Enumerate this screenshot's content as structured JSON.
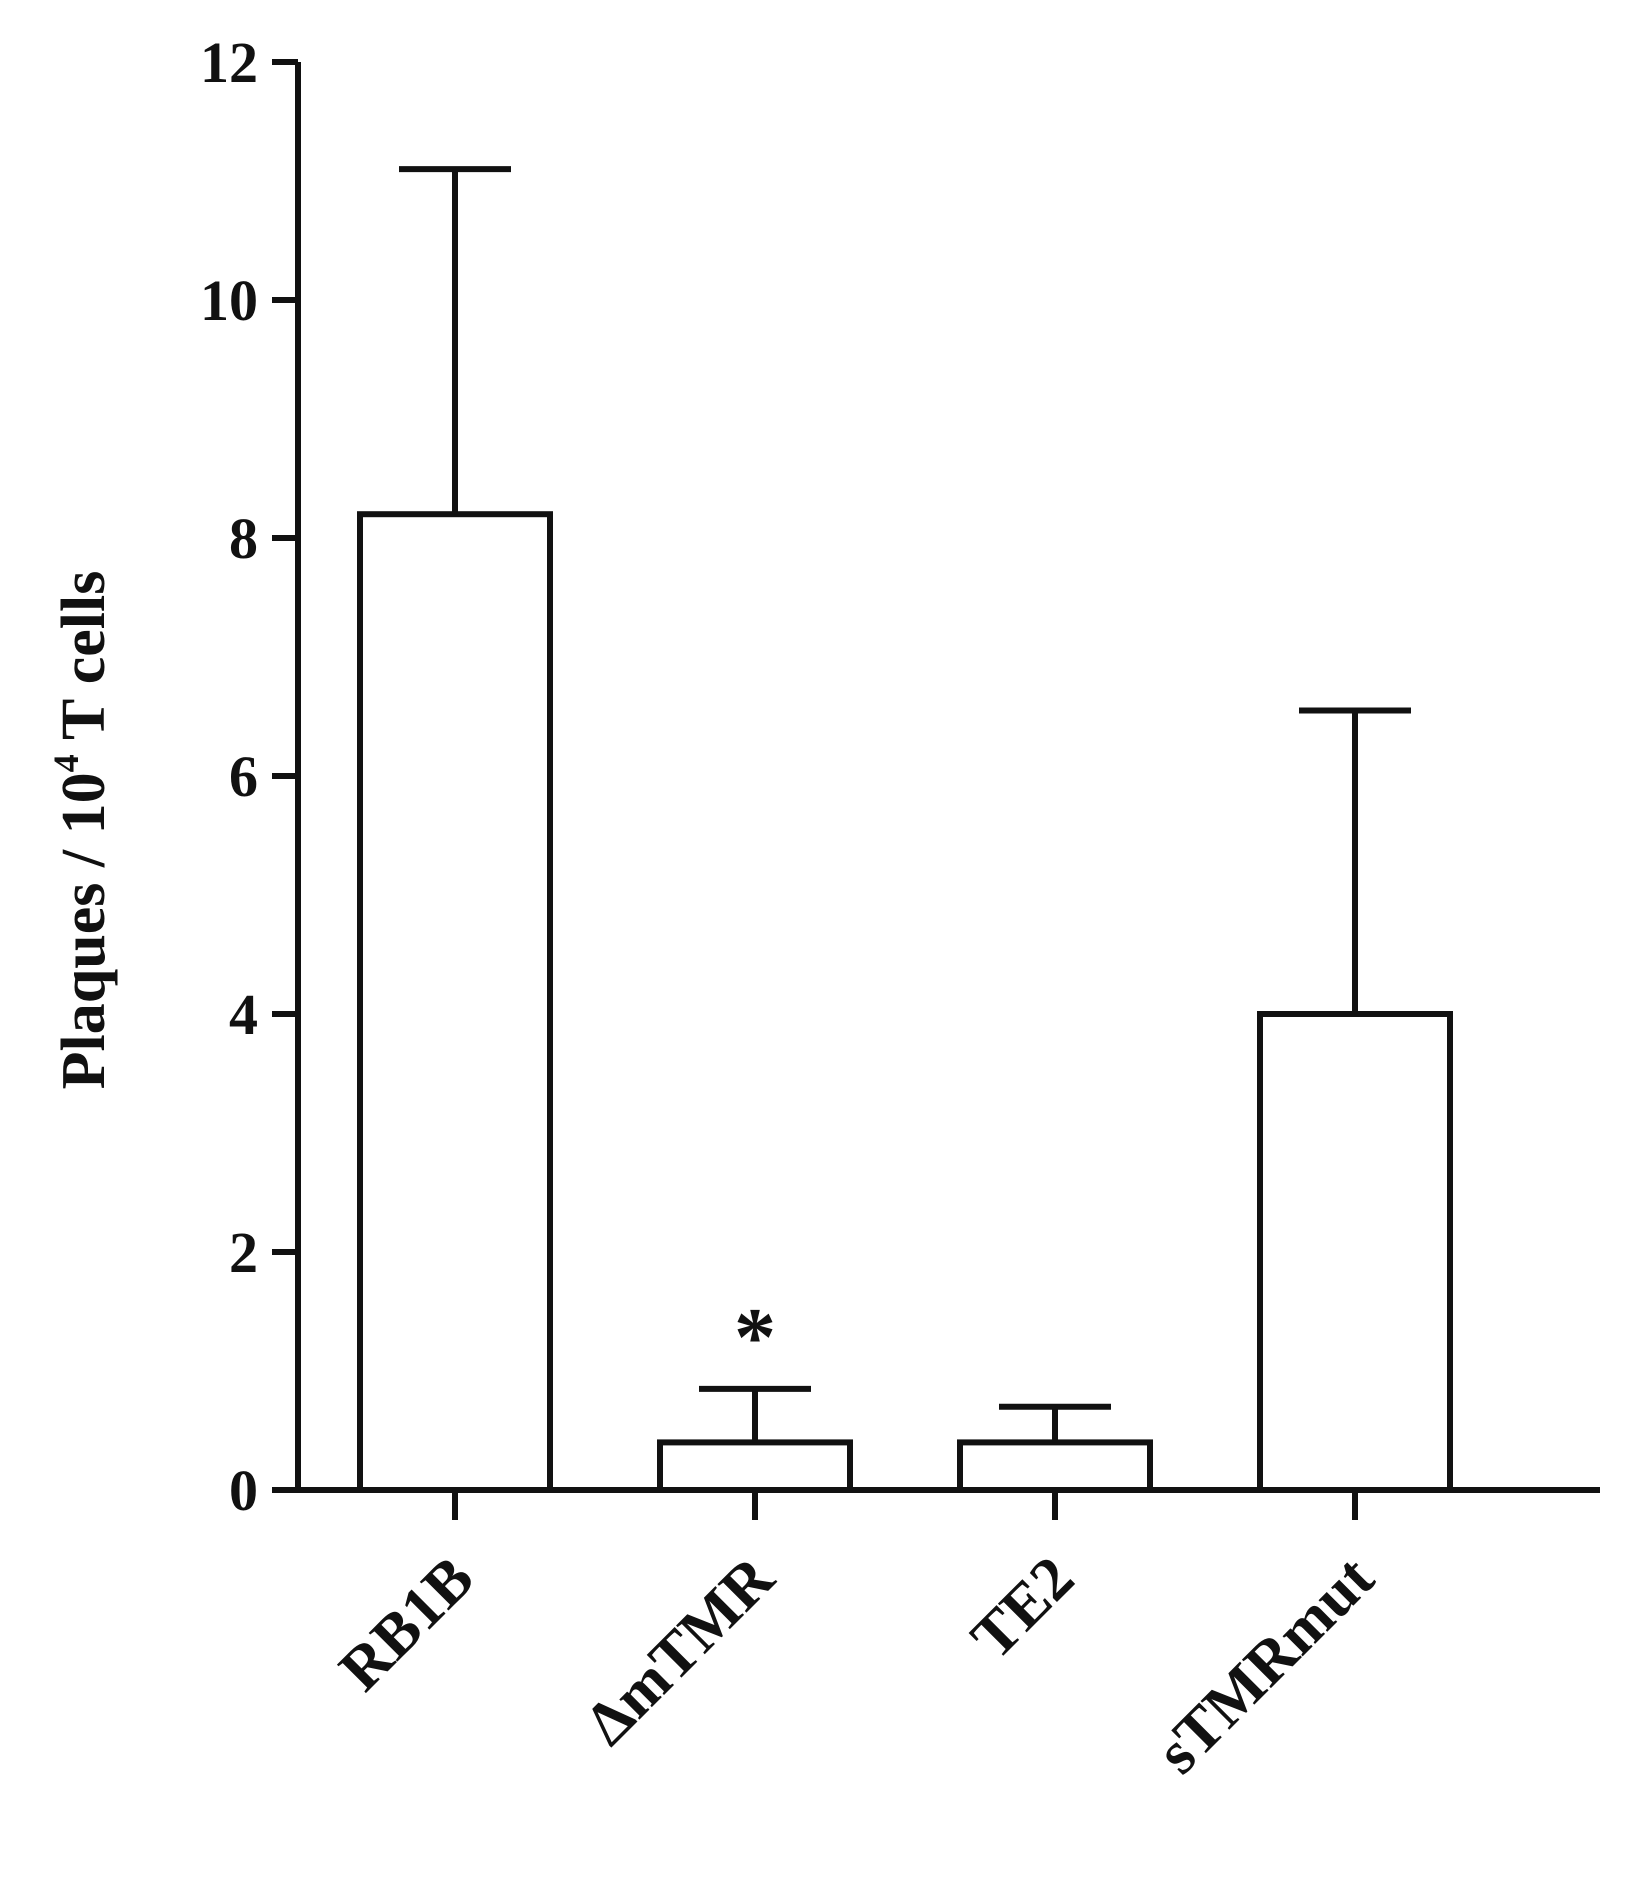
{
  "chart_data": {
    "type": "bar",
    "title": "",
    "xlabel": "",
    "ylabel": {
      "prefix": "Plaques / 10",
      "superscript": "4",
      "suffix": " T cells"
    },
    "ylim": [
      0,
      12
    ],
    "yticks": [
      "0",
      "2",
      "4",
      "6",
      "8",
      "10",
      "12"
    ],
    "categories": [
      "RB1B",
      "ΔmTMR",
      "TE2",
      "sTMRmut"
    ],
    "values": [
      8.2,
      0.4,
      0.4,
      4.0
    ],
    "error_upper": [
      2.9,
      0.45,
      0.3,
      2.55
    ],
    "annotations": [
      {
        "category_index": 1,
        "text": "*"
      }
    ],
    "bar_fill": "#ffffff",
    "bar_stroke": "#111111",
    "grid": false,
    "legend": "none"
  }
}
